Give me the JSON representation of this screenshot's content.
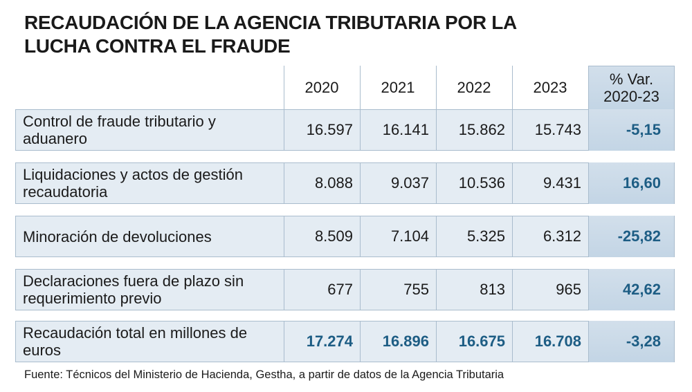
{
  "header": {
    "title": "RECAUDACIÓN DE LA AGENCIA TRIBUTARIA POR LA LUCHA CONTRA EL FRAUDE"
  },
  "table": {
    "columns": [
      "2020",
      "2021",
      "2022",
      "2023",
      "% Var. 2020-23"
    ],
    "rows": [
      {
        "label": "Control de fraude tributario y aduanero",
        "values": [
          "16.597",
          "16.141",
          "15.862",
          "15.743"
        ],
        "var": "-5,15"
      },
      {
        "label": "Liquidaciones y actos de gestión recaudatoria",
        "values": [
          "8.088",
          "9.037",
          "10.536",
          "9.431"
        ],
        "var": "16,60"
      },
      {
        "label": "Minoración de devoluciones",
        "values": [
          "8.509",
          "7.104",
          "5.325",
          "6.312"
        ],
        "var": "-25,82"
      },
      {
        "label": "Declaraciones fuera de plazo sin requerimiento previo",
        "values": [
          "677",
          "755",
          "813",
          "965"
        ],
        "var": "42,62"
      },
      {
        "label": "Recaudación total en millones de euros",
        "values": [
          "17.274",
          "16.896",
          "16.675",
          "16.708"
        ],
        "var": "-3,28"
      }
    ]
  },
  "footer": {
    "source": "Fuente: Técnicos del Ministerio de Hacienda, Gestha, a partir de datos de la Agencia Tributaria"
  }
}
